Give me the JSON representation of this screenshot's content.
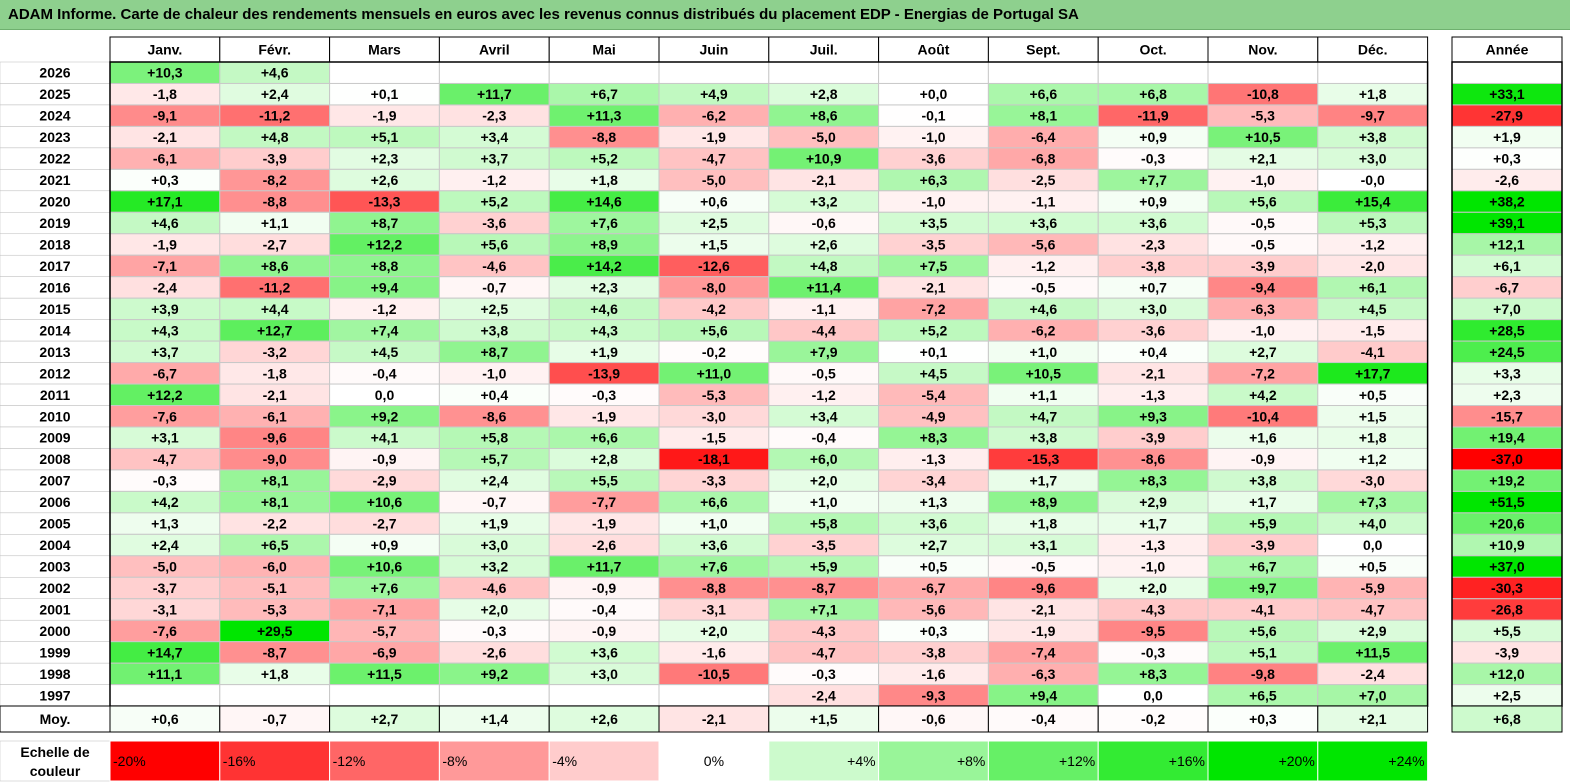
{
  "title": "ADAM Informe. Carte de chaleur des rendements mensuels en euros avec les revenus connus distribués du placement EDP - Energias de Portugal SA",
  "chart_data": {
    "type": "heatmap",
    "title": "ADAM Informe. Carte de chaleur des rendements mensuels en euros avec les revenus connus distribués du placement EDP - Energias de Portugal SA",
    "months": [
      "Janv.",
      "Févr.",
      "Mars",
      "Avril",
      "Mai",
      "Juin",
      "Juil.",
      "Août",
      "Sept.",
      "Oct.",
      "Nov.",
      "Déc."
    ],
    "year_header": "Année",
    "rows": [
      {
        "label": "2026",
        "values": [
          "+10,3",
          "+4,6",
          null,
          null,
          null,
          null,
          null,
          null,
          null,
          null,
          null,
          null
        ],
        "year": null
      },
      {
        "label": "2025",
        "values": [
          "-1,8",
          "+2,4",
          "+0,1",
          "+11,7",
          "+6,7",
          "+4,9",
          "+2,8",
          "+0,0",
          "+6,6",
          "+6,8",
          "-10,8",
          "+1,8"
        ],
        "year": "+33,1"
      },
      {
        "label": "2024",
        "values": [
          "-9,1",
          "-11,2",
          "-1,9",
          "-2,3",
          "+11,3",
          "-6,2",
          "+8,6",
          "-0,1",
          "+8,1",
          "-11,9",
          "-5,3",
          "-9,7"
        ],
        "year": "-27,9"
      },
      {
        "label": "2023",
        "values": [
          "-2,1",
          "+4,8",
          "+5,1",
          "+3,4",
          "-8,8",
          "-1,9",
          "-5,0",
          "-1,0",
          "-6,4",
          "+0,9",
          "+10,5",
          "+3,8"
        ],
        "year": "+1,9"
      },
      {
        "label": "2022",
        "values": [
          "-6,1",
          "-3,9",
          "+2,3",
          "+3,7",
          "+5,2",
          "-4,7",
          "+10,9",
          "-3,6",
          "-6,8",
          "-0,3",
          "+2,1",
          "+3,0"
        ],
        "year": "+0,3"
      },
      {
        "label": "2021",
        "values": [
          "+0,3",
          "-8,2",
          "+2,6",
          "-1,2",
          "+1,8",
          "-5,0",
          "-2,1",
          "+6,3",
          "-2,5",
          "+7,7",
          "-1,0",
          "-0,0"
        ],
        "year": "-2,6"
      },
      {
        "label": "2020",
        "values": [
          "+17,1",
          "-8,8",
          "-13,3",
          "+5,2",
          "+14,6",
          "+0,6",
          "+3,2",
          "-1,0",
          "-1,1",
          "+0,9",
          "+5,6",
          "+15,4"
        ],
        "year": "+38,2"
      },
      {
        "label": "2019",
        "values": [
          "+4,6",
          "+1,1",
          "+8,7",
          "-3,6",
          "+7,6",
          "+2,5",
          "-0,6",
          "+3,5",
          "+3,6",
          "+3,6",
          "-0,5",
          "+5,3"
        ],
        "year": "+39,1"
      },
      {
        "label": "2018",
        "values": [
          "-1,9",
          "-2,7",
          "+12,2",
          "+5,6",
          "+8,9",
          "+1,5",
          "+2,6",
          "-3,5",
          "-5,6",
          "-2,3",
          "-0,5",
          "-1,2"
        ],
        "year": "+12,1"
      },
      {
        "label": "2017",
        "values": [
          "-7,1",
          "+8,6",
          "+8,8",
          "-4,6",
          "+14,2",
          "-12,6",
          "+4,8",
          "+7,5",
          "-1,2",
          "-3,8",
          "-3,9",
          "-2,0"
        ],
        "year": "+6,1"
      },
      {
        "label": "2016",
        "values": [
          "-2,4",
          "-11,2",
          "+9,4",
          "-0,7",
          "+2,3",
          "-8,0",
          "+11,4",
          "-2,1",
          "-0,5",
          "+0,7",
          "-9,4",
          "+6,1"
        ],
        "year": "-6,7"
      },
      {
        "label": "2015",
        "values": [
          "+3,9",
          "+4,4",
          "-1,2",
          "+2,5",
          "+4,6",
          "-4,2",
          "-1,1",
          "-7,2",
          "+4,6",
          "+3,0",
          "-6,3",
          "+4,5"
        ],
        "year": "+7,0"
      },
      {
        "label": "2014",
        "values": [
          "+4,3",
          "+12,7",
          "+7,4",
          "+3,8",
          "+4,3",
          "+5,6",
          "-4,4",
          "+5,2",
          "-6,2",
          "-3,6",
          "-1,0",
          "-1,5"
        ],
        "year": "+28,5"
      },
      {
        "label": "2013",
        "values": [
          "+3,7",
          "-3,2",
          "+4,5",
          "+8,7",
          "+1,9",
          "-0,2",
          "+7,9",
          "+0,1",
          "+1,0",
          "+0,4",
          "+2,7",
          "-4,1"
        ],
        "year": "+24,5"
      },
      {
        "label": "2012",
        "values": [
          "-6,7",
          "-1,8",
          "-0,4",
          "-1,0",
          "-13,9",
          "+11,0",
          "-0,5",
          "+4,5",
          "+10,5",
          "-2,1",
          "-7,2",
          "+17,7"
        ],
        "year": "+3,3"
      },
      {
        "label": "2011",
        "values": [
          "+12,2",
          "-2,1",
          "0,0",
          "+0,4",
          "-0,3",
          "-5,3",
          "-1,2",
          "-5,4",
          "+1,1",
          "-1,3",
          "+4,2",
          "+0,5"
        ],
        "year": "+2,3"
      },
      {
        "label": "2010",
        "values": [
          "-7,6",
          "-6,1",
          "+9,2",
          "-8,6",
          "-1,9",
          "-3,0",
          "+3,4",
          "-4,9",
          "+4,7",
          "+9,3",
          "-10,4",
          "+1,5"
        ],
        "year": "-15,7"
      },
      {
        "label": "2009",
        "values": [
          "+3,1",
          "-9,6",
          "+4,1",
          "+5,8",
          "+6,6",
          "-1,5",
          "-0,4",
          "+8,3",
          "+3,8",
          "-3,9",
          "+1,6",
          "+1,8"
        ],
        "year": "+19,4"
      },
      {
        "label": "2008",
        "values": [
          "-4,7",
          "-9,0",
          "-0,9",
          "+5,7",
          "+2,8",
          "-18,1",
          "+6,0",
          "-1,3",
          "-15,3",
          "-8,6",
          "-0,9",
          "+1,2"
        ],
        "year": "-37,0"
      },
      {
        "label": "2007",
        "values": [
          "-0,3",
          "+8,1",
          "-2,9",
          "+2,4",
          "+5,5",
          "-3,3",
          "+2,0",
          "-3,4",
          "+1,7",
          "+8,3",
          "+3,8",
          "-3,0"
        ],
        "year": "+19,2"
      },
      {
        "label": "2006",
        "values": [
          "+4,2",
          "+8,1",
          "+10,6",
          "-0,7",
          "-7,7",
          "+6,6",
          "+1,0",
          "+1,3",
          "+8,9",
          "+2,9",
          "+1,7",
          "+7,3"
        ],
        "year": "+51,5"
      },
      {
        "label": "2005",
        "values": [
          "+1,3",
          "-2,2",
          "-2,7",
          "+1,9",
          "-1,9",
          "+1,0",
          "+5,8",
          "+3,6",
          "+1,8",
          "+1,7",
          "+5,9",
          "+4,0"
        ],
        "year": "+20,6"
      },
      {
        "label": "2004",
        "values": [
          "+2,4",
          "+6,5",
          "+0,9",
          "+3,0",
          "-2,6",
          "+3,6",
          "-3,5",
          "+2,7",
          "+3,1",
          "-1,3",
          "-3,9",
          "0,0"
        ],
        "year": "+10,9"
      },
      {
        "label": "2003",
        "values": [
          "-5,0",
          "-6,0",
          "+10,6",
          "+3,2",
          "+11,7",
          "+7,6",
          "+5,9",
          "+0,5",
          "-0,5",
          "-1,0",
          "+6,7",
          "+0,5"
        ],
        "year": "+37,0"
      },
      {
        "label": "2002",
        "values": [
          "-3,7",
          "-5,1",
          "+7,6",
          "-4,6",
          "-0,9",
          "-8,8",
          "-8,7",
          "-6,7",
          "-9,6",
          "+2,0",
          "+9,7",
          "-5,9"
        ],
        "year": "-30,3"
      },
      {
        "label": "2001",
        "values": [
          "-3,1",
          "-5,3",
          "-7,1",
          "+2,0",
          "-0,4",
          "-3,1",
          "+7,1",
          "-5,6",
          "-2,1",
          "-4,3",
          "-4,1",
          "-4,7"
        ],
        "year": "-26,8"
      },
      {
        "label": "2000",
        "values": [
          "-7,6",
          "+29,5",
          "-5,7",
          "-0,3",
          "-0,9",
          "+2,0",
          "-4,3",
          "+0,3",
          "-1,9",
          "-9,5",
          "+5,6",
          "+2,9"
        ],
        "year": "+5,5"
      },
      {
        "label": "1999",
        "values": [
          "+14,7",
          "-8,7",
          "-6,9",
          "-2,6",
          "+3,6",
          "-1,6",
          "-4,7",
          "-3,8",
          "-7,4",
          "-0,3",
          "+5,1",
          "+11,5"
        ],
        "year": "-3,9"
      },
      {
        "label": "1998",
        "values": [
          "+11,1",
          "+1,8",
          "+11,5",
          "+9,2",
          "+3,0",
          "-10,5",
          "-0,3",
          "-1,6",
          "-6,3",
          "+8,3",
          "-9,8",
          "-2,4"
        ],
        "year": "+12,0"
      },
      {
        "label": "1997",
        "values": [
          null,
          null,
          null,
          null,
          null,
          null,
          "-2,4",
          "-9,3",
          "+9,4",
          "0,0",
          "+6,5",
          "+7,0"
        ],
        "year": "+2,5"
      }
    ],
    "average": {
      "label": "Moy.",
      "values": [
        "+0,6",
        "-0,7",
        "+2,7",
        "+1,4",
        "+2,6",
        "-2,1",
        "+1,5",
        "-0,6",
        "-0,4",
        "-0,2",
        "+0,3",
        "+2,1"
      ],
      "year": "+6,8"
    },
    "scale": {
      "label_line1": "Echelle de",
      "label_line2": "couleur",
      "steps": [
        "-20%",
        "-16%",
        "-12%",
        "-8%",
        "-4%",
        "0%",
        "+4%",
        "+8%",
        "+12%",
        "+16%",
        "+20%",
        "+24%"
      ],
      "step_values": [
        -20,
        -16,
        -12,
        -8,
        -4,
        0,
        4,
        8,
        12,
        16,
        20,
        24
      ]
    },
    "colors": {
      "negative_max": "#ff0000",
      "positive_max": "#00e600",
      "neutral": "#ffffff",
      "title_bg": "#8ed08e"
    }
  }
}
